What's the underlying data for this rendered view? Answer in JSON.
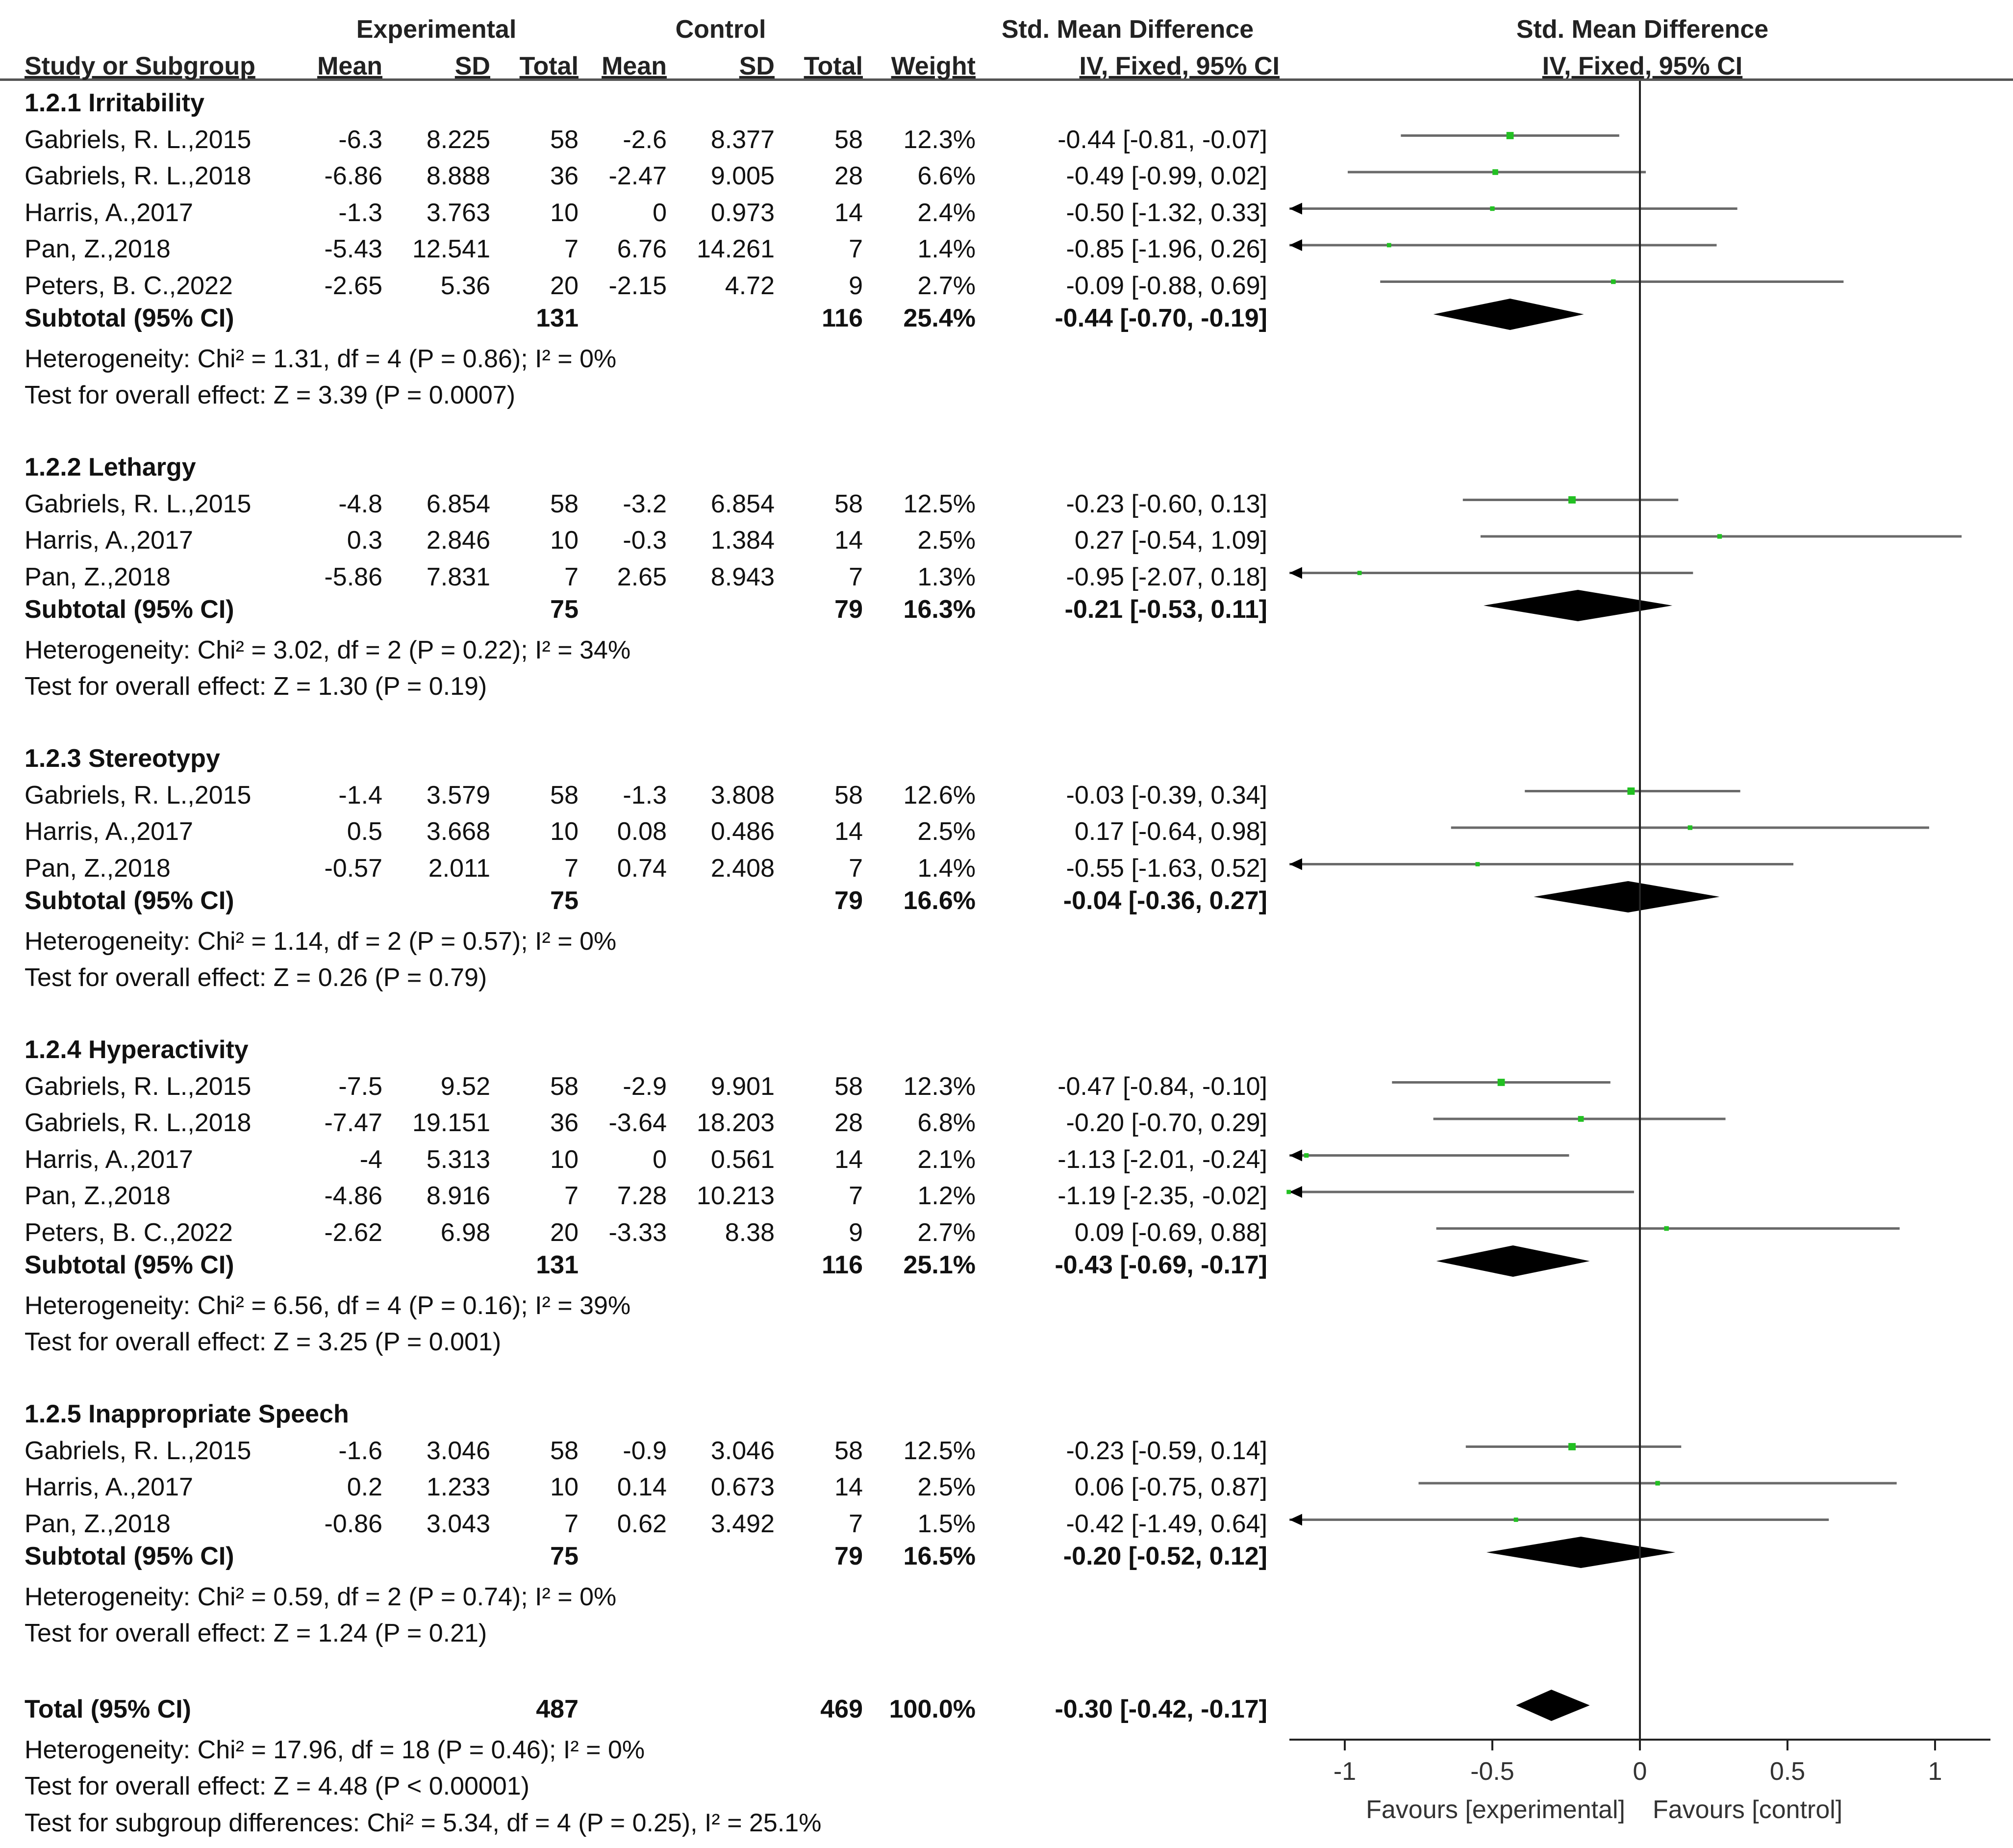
{
  "chart_data": {
    "type": "forest",
    "header": {
      "group1": "Experimental",
      "group2": "Control",
      "effect_group": "Std. Mean Difference",
      "plot_group": "Std. Mean Difference",
      "col_study": "Study or Subgroup",
      "col_mean1": "Mean",
      "col_sd1": "SD",
      "col_total1": "Total",
      "col_mean2": "Mean",
      "col_sd2": "SD",
      "col_total2": "Total",
      "col_weight": "Weight",
      "col_ci": "IV, Fixed, 95% CI",
      "plot_method": "IV, Fixed, 95% CI"
    },
    "axis": {
      "xlim": [
        -1,
        1
      ],
      "ticks": [
        -1,
        -0.5,
        0,
        0.5,
        1
      ],
      "tick_labels": [
        "-1",
        "-0.5",
        "0",
        "0.5",
        "1"
      ],
      "label_left": "Favours [experimental]",
      "label_right": "Favours [control]"
    },
    "subgroups": [
      {
        "title": "1.2.1 Irritability",
        "studies": [
          {
            "name": "Gabriels, R. L.,2015",
            "mean1": "-6.3",
            "sd1": "8.225",
            "n1": "58",
            "mean2": "-2.6",
            "sd2": "8.377",
            "n2": "58",
            "weight": "12.3%",
            "ci_text": "-0.44 [-0.81, -0.07]",
            "est": -0.44,
            "lo": -0.81,
            "hi": -0.07
          },
          {
            "name": "Gabriels, R. L.,2018",
            "mean1": "-6.86",
            "sd1": "8.888",
            "n1": "36",
            "mean2": "-2.47",
            "sd2": "9.005",
            "n2": "28",
            "weight": "6.6%",
            "ci_text": "-0.49 [-0.99, 0.02]",
            "est": -0.49,
            "lo": -0.99,
            "hi": 0.02
          },
          {
            "name": "Harris, A.,2017",
            "mean1": "-1.3",
            "sd1": "3.763",
            "n1": "10",
            "mean2": "0",
            "sd2": "0.973",
            "n2": "14",
            "weight": "2.4%",
            "ci_text": "-0.50 [-1.32, 0.33]",
            "est": -0.5,
            "lo": -1.32,
            "hi": 0.33
          },
          {
            "name": "Pan, Z.,2018",
            "mean1": "-5.43",
            "sd1": "12.541",
            "n1": "7",
            "mean2": "6.76",
            "sd2": "14.261",
            "n2": "7",
            "weight": "1.4%",
            "ci_text": "-0.85 [-1.96, 0.26]",
            "est": -0.85,
            "lo": -1.96,
            "hi": 0.26
          },
          {
            "name": "Peters, B. C.,2022",
            "mean1": "-2.65",
            "sd1": "5.36",
            "n1": "20",
            "mean2": "-2.15",
            "sd2": "4.72",
            "n2": "9",
            "weight": "2.7%",
            "ci_text": "-0.09 [-0.88, 0.69]",
            "est": -0.09,
            "lo": -0.88,
            "hi": 0.69
          }
        ],
        "subtotal": {
          "label": "Subtotal (95% CI)",
          "n1": "131",
          "n2": "116",
          "weight": "25.4%",
          "ci_text": "-0.44 [-0.70, -0.19]",
          "est": -0.44,
          "lo": -0.7,
          "hi": -0.19
        },
        "heterogeneity": "Heterogeneity: Chi² = 1.31, df = 4 (P = 0.86); I² = 0%",
        "overall": "Test for overall effect: Z = 3.39 (P = 0.0007)"
      },
      {
        "title": "1.2.2 Lethargy",
        "studies": [
          {
            "name": "Gabriels, R. L.,2015",
            "mean1": "-4.8",
            "sd1": "6.854",
            "n1": "58",
            "mean2": "-3.2",
            "sd2": "6.854",
            "n2": "58",
            "weight": "12.5%",
            "ci_text": "-0.23 [-0.60, 0.13]",
            "est": -0.23,
            "lo": -0.6,
            "hi": 0.13
          },
          {
            "name": "Harris, A.,2017",
            "mean1": "0.3",
            "sd1": "2.846",
            "n1": "10",
            "mean2": "-0.3",
            "sd2": "1.384",
            "n2": "14",
            "weight": "2.5%",
            "ci_text": "0.27 [-0.54, 1.09]",
            "est": 0.27,
            "lo": -0.54,
            "hi": 1.09
          },
          {
            "name": "Pan, Z.,2018",
            "mean1": "-5.86",
            "sd1": "7.831",
            "n1": "7",
            "mean2": "2.65",
            "sd2": "8.943",
            "n2": "7",
            "weight": "1.3%",
            "ci_text": "-0.95 [-2.07, 0.18]",
            "est": -0.95,
            "lo": -2.07,
            "hi": 0.18
          }
        ],
        "subtotal": {
          "label": "Subtotal (95% CI)",
          "n1": "75",
          "n2": "79",
          "weight": "16.3%",
          "ci_text": "-0.21 [-0.53, 0.11]",
          "est": -0.21,
          "lo": -0.53,
          "hi": 0.11
        },
        "heterogeneity": "Heterogeneity: Chi² = 3.02, df = 2 (P = 0.22); I² = 34%",
        "overall": "Test for overall effect: Z = 1.30 (P = 0.19)"
      },
      {
        "title": "1.2.3 Stereotypy",
        "studies": [
          {
            "name": "Gabriels, R. L.,2015",
            "mean1": "-1.4",
            "sd1": "3.579",
            "n1": "58",
            "mean2": "-1.3",
            "sd2": "3.808",
            "n2": "58",
            "weight": "12.6%",
            "ci_text": "-0.03 [-0.39, 0.34]",
            "est": -0.03,
            "lo": -0.39,
            "hi": 0.34
          },
          {
            "name": "Harris, A.,2017",
            "mean1": "0.5",
            "sd1": "3.668",
            "n1": "10",
            "mean2": "0.08",
            "sd2": "0.486",
            "n2": "14",
            "weight": "2.5%",
            "ci_text": "0.17 [-0.64, 0.98]",
            "est": 0.17,
            "lo": -0.64,
            "hi": 0.98
          },
          {
            "name": "Pan, Z.,2018",
            "mean1": "-0.57",
            "sd1": "2.011",
            "n1": "7",
            "mean2": "0.74",
            "sd2": "2.408",
            "n2": "7",
            "weight": "1.4%",
            "ci_text": "-0.55 [-1.63, 0.52]",
            "est": -0.55,
            "lo": -1.63,
            "hi": 0.52
          }
        ],
        "subtotal": {
          "label": "Subtotal (95% CI)",
          "n1": "75",
          "n2": "79",
          "weight": "16.6%",
          "ci_text": "-0.04 [-0.36, 0.27]",
          "est": -0.04,
          "lo": -0.36,
          "hi": 0.27
        },
        "heterogeneity": "Heterogeneity: Chi² = 1.14, df = 2 (P = 0.57); I² = 0%",
        "overall": "Test for overall effect: Z = 0.26 (P = 0.79)"
      },
      {
        "title": "1.2.4 Hyperactivity",
        "studies": [
          {
            "name": "Gabriels, R. L.,2015",
            "mean1": "-7.5",
            "sd1": "9.52",
            "n1": "58",
            "mean2": "-2.9",
            "sd2": "9.901",
            "n2": "58",
            "weight": "12.3%",
            "ci_text": "-0.47 [-0.84, -0.10]",
            "est": -0.47,
            "lo": -0.84,
            "hi": -0.1
          },
          {
            "name": "Gabriels, R. L.,2018",
            "mean1": "-7.47",
            "sd1": "19.151",
            "n1": "36",
            "mean2": "-3.64",
            "sd2": "18.203",
            "n2": "28",
            "weight": "6.8%",
            "ci_text": "-0.20 [-0.70, 0.29]",
            "est": -0.2,
            "lo": -0.7,
            "hi": 0.29
          },
          {
            "name": "Harris, A.,2017",
            "mean1": "-4",
            "sd1": "5.313",
            "n1": "10",
            "mean2": "0",
            "sd2": "0.561",
            "n2": "14",
            "weight": "2.1%",
            "ci_text": "-1.13 [-2.01, -0.24]",
            "est": -1.13,
            "lo": -2.01,
            "hi": -0.24
          },
          {
            "name": "Pan, Z.,2018",
            "mean1": "-4.86",
            "sd1": "8.916",
            "n1": "7",
            "mean2": "7.28",
            "sd2": "10.213",
            "n2": "7",
            "weight": "1.2%",
            "ci_text": "-1.19 [-2.35, -0.02]",
            "est": -1.19,
            "lo": -2.35,
            "hi": -0.02
          },
          {
            "name": "Peters, B. C.,2022",
            "mean1": "-2.62",
            "sd1": "6.98",
            "n1": "20",
            "mean2": "-3.33",
            "sd2": "8.38",
            "n2": "9",
            "weight": "2.7%",
            "ci_text": "0.09 [-0.69, 0.88]",
            "est": 0.09,
            "lo": -0.69,
            "hi": 0.88
          }
        ],
        "subtotal": {
          "label": "Subtotal (95% CI)",
          "n1": "131",
          "n2": "116",
          "weight": "25.1%",
          "ci_text": "-0.43 [-0.69, -0.17]",
          "est": -0.43,
          "lo": -0.69,
          "hi": -0.17
        },
        "heterogeneity": "Heterogeneity: Chi² = 6.56, df = 4 (P = 0.16); I² = 39%",
        "overall": "Test for overall effect: Z = 3.25 (P = 0.001)"
      },
      {
        "title": "1.2.5 Inappropriate Speech",
        "studies": [
          {
            "name": "Gabriels, R. L.,2015",
            "mean1": "-1.6",
            "sd1": "3.046",
            "n1": "58",
            "mean2": "-0.9",
            "sd2": "3.046",
            "n2": "58",
            "weight": "12.5%",
            "ci_text": "-0.23 [-0.59, 0.14]",
            "est": -0.23,
            "lo": -0.59,
            "hi": 0.14
          },
          {
            "name": "Harris, A.,2017",
            "mean1": "0.2",
            "sd1": "1.233",
            "n1": "10",
            "mean2": "0.14",
            "sd2": "0.673",
            "n2": "14",
            "weight": "2.5%",
            "ci_text": "0.06 [-0.75, 0.87]",
            "est": 0.06,
            "lo": -0.75,
            "hi": 0.87
          },
          {
            "name": "Pan, Z.,2018",
            "mean1": "-0.86",
            "sd1": "3.043",
            "n1": "7",
            "mean2": "0.62",
            "sd2": "3.492",
            "n2": "7",
            "weight": "1.5%",
            "ci_text": "-0.42 [-1.49, 0.64]",
            "est": -0.42,
            "lo": -1.49,
            "hi": 0.64
          }
        ],
        "subtotal": {
          "label": "Subtotal (95% CI)",
          "n1": "75",
          "n2": "79",
          "weight": "16.5%",
          "ci_text": "-0.20 [-0.52, 0.12]",
          "est": -0.2,
          "lo": -0.52,
          "hi": 0.12
        },
        "heterogeneity": "Heterogeneity: Chi² = 0.59, df = 2 (P = 0.74); I² = 0%",
        "overall": "Test for overall effect: Z = 1.24 (P = 0.21)"
      }
    ],
    "total": {
      "label": "Total (95% CI)",
      "n1": "487",
      "n2": "469",
      "weight": "100.0%",
      "ci_text": "-0.30 [-0.42, -0.17]",
      "est": -0.3,
      "lo": -0.42,
      "hi": -0.17
    },
    "total_heterogeneity": "Heterogeneity: Chi² = 17.96, df = 18 (P = 0.46); I² = 0%",
    "total_overall": "Test for overall effect: Z = 4.48 (P < 0.00001)",
    "subgroup_differences": "Test for subgroup differences: Chi² = 5.34, df = 4 (P = 0.25), I² = 25.1%",
    "colors": {
      "study_marker": "#22c022",
      "ci_line": "#6a6a6a",
      "diamond": "#000000",
      "axis": "#222222"
    }
  }
}
